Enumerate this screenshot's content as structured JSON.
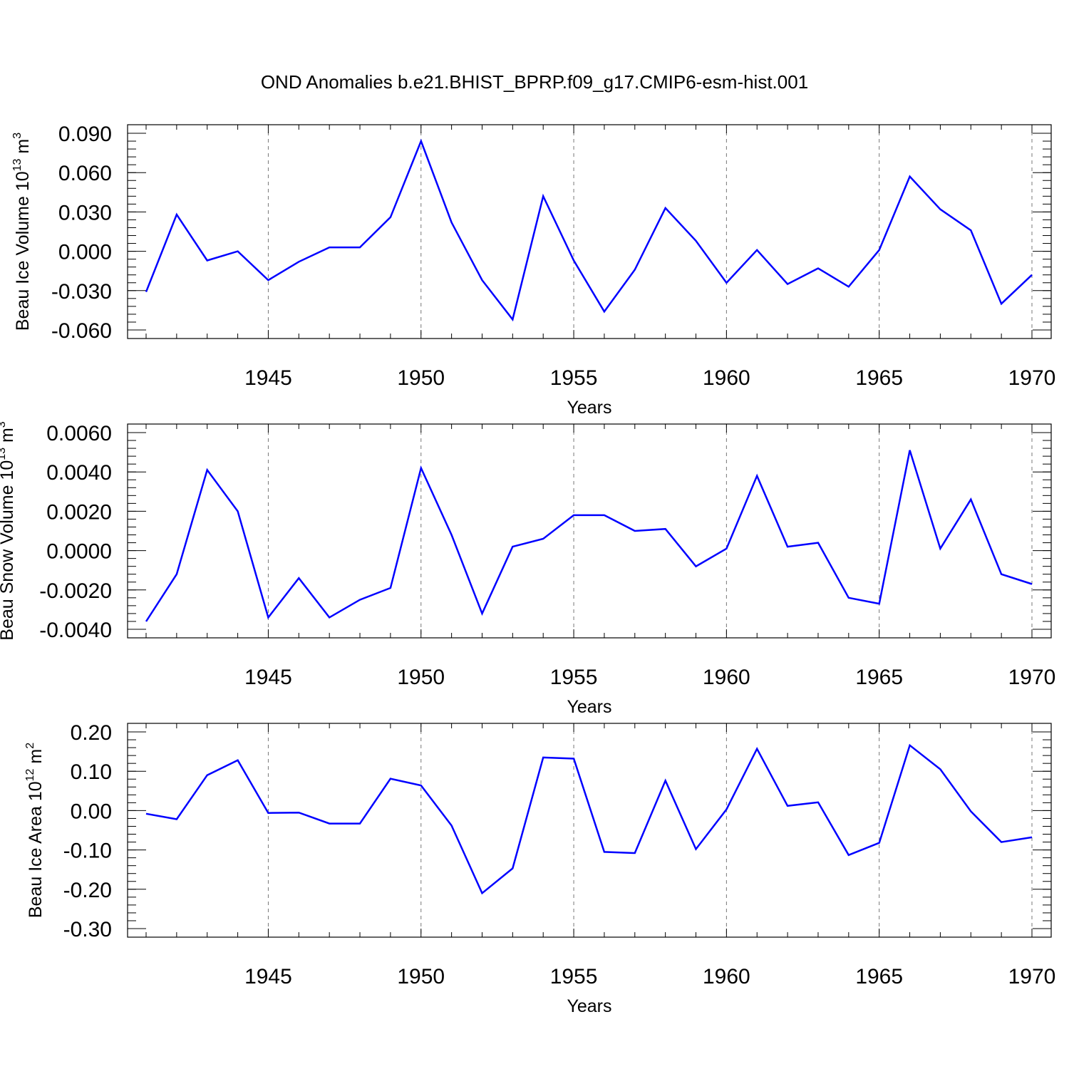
{
  "figure_title": "OND Anomalies b.e21.BHIST_BPRP.f09_g17.CMIP6-esm-hist.001",
  "line_color": "#0000ff",
  "chart_data": [
    {
      "type": "line",
      "title": "OND Anomalies b.e21.BHIST_BPRP.f09_g17.CMIP6-esm-hist.001",
      "xlabel": "Years",
      "ylabel": "Beau Ice Volume 10",
      "ylabel_exp": "13",
      "ylabel_unit": "m",
      "ylabel_unit_exp": "3",
      "xlim": [
        1941,
        1970
      ],
      "ylim": [
        -0.06,
        0.09
      ],
      "yticks": [
        -0.06,
        -0.03,
        0.0,
        0.03,
        0.06,
        0.09
      ],
      "ytick_labels": [
        "-0.060",
        "-0.030",
        "0.000",
        "0.030",
        "0.060",
        "0.090"
      ],
      "yminor": 0.006,
      "xticks": [
        1945,
        1950,
        1955,
        1960,
        1965,
        1970
      ],
      "xtick_labels": [
        "1945",
        "1950",
        "1955",
        "1960",
        "1965",
        "1970"
      ],
      "grid": "x dashed",
      "x": [
        1941,
        1942,
        1943,
        1944,
        1945,
        1946,
        1947,
        1948,
        1949,
        1950,
        1951,
        1952,
        1953,
        1954,
        1955,
        1956,
        1957,
        1958,
        1959,
        1960,
        1961,
        1962,
        1963,
        1964,
        1965,
        1966,
        1967,
        1968,
        1969,
        1970
      ],
      "series": [
        {
          "name": "Beau Ice Volume",
          "values": [
            -0.031,
            0.028,
            -0.007,
            0.0,
            -0.022,
            -0.008,
            0.003,
            0.003,
            0.026,
            0.084,
            0.022,
            -0.022,
            -0.052,
            0.042,
            -0.007,
            -0.046,
            -0.014,
            0.033,
            0.008,
            -0.024,
            0.001,
            -0.025,
            -0.013,
            -0.027,
            0.001,
            0.057,
            0.032,
            0.016,
            -0.04,
            -0.018
          ]
        }
      ]
    },
    {
      "type": "line",
      "title": "",
      "xlabel": "Years",
      "ylabel": "Beau Snow Volume 10",
      "ylabel_exp": "13",
      "ylabel_unit": "m",
      "ylabel_unit_exp": "3",
      "xlim": [
        1941,
        1970
      ],
      "ylim": [
        -0.004,
        0.006
      ],
      "yticks": [
        -0.004,
        -0.002,
        0.0,
        0.002,
        0.004,
        0.006
      ],
      "ytick_labels": [
        "-0.0040",
        "-0.0020",
        "0.0000",
        "0.0020",
        "0.0040",
        "0.0060"
      ],
      "yminor": 0.0004,
      "xticks": [
        1945,
        1950,
        1955,
        1960,
        1965,
        1970
      ],
      "xtick_labels": [
        "1945",
        "1950",
        "1955",
        "1960",
        "1965",
        "1970"
      ],
      "grid": "x dashed",
      "x": [
        1941,
        1942,
        1943,
        1944,
        1945,
        1946,
        1947,
        1948,
        1949,
        1950,
        1951,
        1952,
        1953,
        1954,
        1955,
        1956,
        1957,
        1958,
        1959,
        1960,
        1961,
        1962,
        1963,
        1964,
        1965,
        1966,
        1967,
        1968,
        1969,
        1970
      ],
      "series": [
        {
          "name": "Beau Snow Volume",
          "values": [
            -0.0036,
            -0.0012,
            0.0041,
            0.002,
            -0.0034,
            -0.0014,
            -0.0034,
            -0.0025,
            -0.0019,
            0.0042,
            0.0008,
            -0.0032,
            0.0002,
            0.0006,
            0.0018,
            0.0018,
            0.001,
            0.0011,
            -0.0008,
            0.0001,
            0.0038,
            0.0002,
            0.0004,
            -0.0024,
            -0.0027,
            0.0051,
            0.0001,
            0.0026,
            -0.0012,
            -0.0017
          ]
        }
      ]
    },
    {
      "type": "line",
      "title": "",
      "xlabel": "Years",
      "ylabel": "Beau Ice Area 10",
      "ylabel_exp": "12",
      "ylabel_unit": "m",
      "ylabel_unit_exp": "2",
      "xlim": [
        1941,
        1970
      ],
      "ylim": [
        -0.3,
        0.2
      ],
      "yticks": [
        -0.3,
        -0.2,
        -0.1,
        0.0,
        0.1,
        0.2
      ],
      "ytick_labels": [
        "-0.30",
        "-0.20",
        "-0.10",
        "0.00",
        "0.10",
        "0.20"
      ],
      "yminor": 0.02,
      "xticks": [
        1945,
        1950,
        1955,
        1960,
        1965,
        1970
      ],
      "xtick_labels": [
        "1945",
        "1950",
        "1955",
        "1960",
        "1965",
        "1970"
      ],
      "grid": "x dashed",
      "x": [
        1941,
        1942,
        1943,
        1944,
        1945,
        1946,
        1947,
        1948,
        1949,
        1950,
        1951,
        1952,
        1953,
        1954,
        1955,
        1956,
        1957,
        1958,
        1959,
        1960,
        1961,
        1962,
        1963,
        1964,
        1965,
        1966,
        1967,
        1968,
        1969,
        1970
      ],
      "series": [
        {
          "name": "Beau Ice Area",
          "values": [
            -0.008,
            -0.022,
            0.09,
            0.128,
            -0.006,
            -0.005,
            -0.033,
            -0.033,
            0.081,
            0.064,
            -0.038,
            -0.21,
            -0.147,
            0.135,
            0.132,
            -0.105,
            -0.108,
            0.076,
            -0.098,
            0.003,
            0.157,
            0.012,
            0.021,
            -0.113,
            -0.082,
            0.166,
            0.105,
            -0.002,
            -0.08,
            -0.068
          ]
        }
      ]
    }
  ]
}
